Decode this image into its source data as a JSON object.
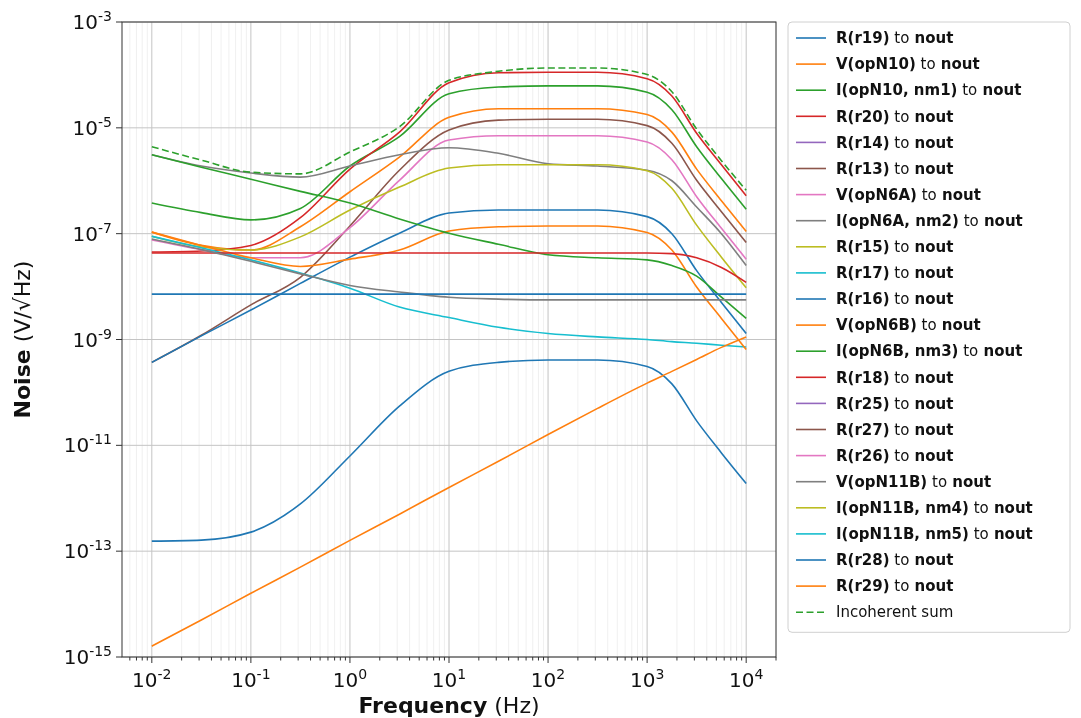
{
  "chart_data": {
    "type": "line",
    "xlabel": "Frequency (Hz)",
    "ylabel": "Noise (V/√Hz)",
    "log": "xy",
    "grid": true,
    "legend": "right",
    "xlim": [
      0.005,
      20000
    ],
    "ylim": [
      1e-15,
      0.001
    ],
    "xticks": [
      {
        "value": 0.006,
        "label": null
      },
      {
        "value": 0.007,
        "label": null
      },
      {
        "value": 0.008,
        "label": null
      },
      {
        "value": 0.009,
        "label": null
      },
      {
        "value": 0.01,
        "label": "10$^{-2}$"
      },
      {
        "value": 0.02,
        "label": null
      },
      {
        "value": 0.03,
        "label": null
      },
      {
        "value": 0.04,
        "label": null
      },
      {
        "value": 0.05,
        "label": null
      },
      {
        "value": 0.06,
        "label": null
      },
      {
        "value": 0.07,
        "label": null
      },
      {
        "value": 0.08,
        "label": null
      },
      {
        "value": 0.09,
        "label": null
      },
      {
        "value": 0.1,
        "label": "10$^{-1}$"
      },
      {
        "value": 0.2,
        "label": null
      },
      {
        "value": 0.3,
        "label": null
      },
      {
        "value": 0.4,
        "label": null
      },
      {
        "value": 0.5,
        "label": null
      },
      {
        "value": 0.6,
        "label": null
      },
      {
        "value": 0.7,
        "label": null
      },
      {
        "value": 0.8,
        "label": null
      },
      {
        "value": 0.9,
        "label": null
      },
      {
        "value": 1,
        "label": "10$^{0}$"
      },
      {
        "value": 2,
        "label": null
      },
      {
        "value": 3,
        "label": null
      },
      {
        "value": 4,
        "label": null
      },
      {
        "value": 5,
        "label": null
      },
      {
        "value": 6,
        "label": null
      },
      {
        "value": 7,
        "label": null
      },
      {
        "value": 8,
        "label": null
      },
      {
        "value": 9,
        "label": null
      },
      {
        "value": 10,
        "label": "10$^{1}$"
      },
      {
        "value": 20,
        "label": null
      },
      {
        "value": 30,
        "label": null
      },
      {
        "value": 40,
        "label": null
      },
      {
        "value": 50,
        "label": null
      },
      {
        "value": 60,
        "label": null
      },
      {
        "value": 70,
        "label": null
      },
      {
        "value": 80,
        "label": null
      },
      {
        "value": 90,
        "label": null
      },
      {
        "value": 100,
        "label": "10$^{2}$"
      },
      {
        "value": 200,
        "label": null
      },
      {
        "value": 300,
        "label": null
      },
      {
        "value": 400,
        "label": null
      },
      {
        "value": 500,
        "label": null
      },
      {
        "value": 600,
        "label": null
      },
      {
        "value": 700,
        "label": null
      },
      {
        "value": 800,
        "label": null
      },
      {
        "value": 900,
        "label": null
      },
      {
        "value": 1000,
        "label": "10$^{3}$"
      },
      {
        "value": 2000,
        "label": null
      },
      {
        "value": 3000,
        "label": null
      },
      {
        "value": 4000,
        "label": null
      },
      {
        "value": 5000,
        "label": null
      },
      {
        "value": 6000,
        "label": null
      },
      {
        "value": 7000,
        "label": null
      },
      {
        "value": 8000,
        "label": null
      },
      {
        "value": 9000,
        "label": null
      },
      {
        "value": 10000,
        "label": "10$^{4}$"
      },
      {
        "value": 20000,
        "label": null
      }
    ],
    "yticks": [
      {
        "value": 1e-15,
        "label": "10$^{-15}$"
      },
      {
        "value": 1e-13,
        "label": "10$^{-13}$"
      },
      {
        "value": 1e-11,
        "label": "10$^{-11}$"
      },
      {
        "value": 1e-09,
        "label": "10$^{-9}$"
      },
      {
        "value": 1e-07,
        "label": "10$^{-7}$"
      },
      {
        "value": 1e-05,
        "label": "10$^{-5}$"
      },
      {
        "value": 0.001,
        "label": "10$^{-3}$"
      }
    ],
    "x": [
      0.01,
      0.0316,
      0.1,
      0.316,
      1,
      3.16,
      10,
      31.6,
      100,
      316,
      1000,
      1778,
      3162,
      5623,
      10000
    ],
    "series": [
      {
        "name": "R(r19) to nout",
        "color": "#1f77b4",
        "values": [
          1.55e-13,
          1.62e-13,
          2.29e-13,
          7.8e-13,
          6.3e-12,
          5.5e-11,
          2.5e-10,
          3.7e-10,
          4.1e-10,
          4.1e-10,
          3.1e-10,
          1.45e-10,
          2.9e-11,
          7.2e-12,
          1.9e-12
        ]
      },
      {
        "name": "V(opN10) to nout",
        "color": "#ff7f0e",
        "values": [
          1.07e-07,
          6e-08,
          4.9e-08,
          1.35e-07,
          6.2e-07,
          2.8e-06,
          1.58e-05,
          2.3e-05,
          2.3e-05,
          2.3e-05,
          1.78e-05,
          8.3e-06,
          1.66e-06,
          4.2e-07,
          1.1e-07
        ]
      },
      {
        "name": "I(opN10, nm1) to nout",
        "color": "#2ca02c",
        "values": [
          3.8e-07,
          2.5e-07,
          1.82e-07,
          3e-07,
          1.9e-06,
          6.8e-06,
          4.4e-05,
          5.9e-05,
          6.2e-05,
          6.2e-05,
          4.7e-05,
          2.2e-05,
          4.4e-06,
          1.1e-06,
          2.9e-07
        ]
      },
      {
        "name": "R(r20) to nout",
        "color": "#d62728",
        "values": [
          4.5e-08,
          4.7e-08,
          6e-08,
          2e-07,
          1.66e-06,
          8.3e-06,
          7.1e-05,
          0.00011,
          0.000112,
          0.000112,
          8.5e-05,
          4e-05,
          7.9e-06,
          2e-06,
          5.2e-07
        ]
      },
      {
        "name": "R(r14) to nout",
        "color": "#9467bd",
        "values": [
          null,
          null,
          null,
          null,
          null,
          null,
          null,
          null,
          null,
          null,
          null,
          null,
          null,
          null,
          null
        ]
      },
      {
        "name": "R(r13) to nout",
        "color": "#8c564b",
        "values": [
          3.7e-10,
          1.2e-09,
          4.5e-09,
          1.5e-08,
          1.4e-07,
          1.58e-06,
          9.1e-06,
          1.4e-05,
          1.45e-05,
          1.45e-05,
          1.1e-05,
          5.1e-06,
          1.02e-06,
          2.6e-07,
          6.8e-08
        ]
      },
      {
        "name": "V(opN6A) to nout",
        "color": "#e377c2",
        "values": [
          7.6e-08,
          5e-08,
          3.5e-08,
          3.5e-08,
          1.3e-07,
          1.02e-06,
          5.9e-06,
          7.1e-06,
          7.1e-06,
          7.1e-06,
          5.4e-06,
          2.5e-06,
          5e-07,
          1.26e-07,
          3.3e-08
        ]
      },
      {
        "name": "I(opN6A, nm2) to nout",
        "color": "#7f7f7f",
        "values": [
          3.1e-06,
          1.9e-06,
          1.4e-06,
          1.17e-06,
          1.9e-06,
          3.1e-06,
          4.2e-06,
          3.3e-06,
          2.1e-06,
          1.9e-06,
          1.58e-06,
          1e-06,
          3.2e-07,
          1e-07,
          2.5e-08
        ]
      },
      {
        "name": "R(r15) to nout",
        "color": "#bcbd22",
        "values": [
          8.9e-08,
          5.6e-08,
          4.9e-08,
          8.7e-08,
          2.8e-07,
          7.6e-07,
          1.74e-06,
          2e-06,
          2e-06,
          2e-06,
          1.55e-06,
          7.2e-07,
          1.45e-07,
          3.6e-08,
          9.5e-09
        ]
      },
      {
        "name": "R(r17) to nout",
        "color": "#17becf",
        "values": [
          8.9e-08,
          5.4e-08,
          3.2e-08,
          1.8e-08,
          9.3e-09,
          4.1e-09,
          2.6e-09,
          1.7e-09,
          1.3e-09,
          1.12e-09,
          1e-09,
          9.1e-10,
          8.5e-10,
          7.8e-10,
          7.2e-10
        ]
      },
      {
        "name": "R(r16) to nout",
        "color": "#1f77b4",
        "values": [
          3.7e-10,
          1.17e-09,
          3.6e-09,
          1.15e-08,
          3.6e-08,
          1.02e-07,
          2.45e-07,
          2.8e-07,
          2.8e-07,
          2.8e-07,
          2.1e-07,
          1e-07,
          2e-08,
          5e-09,
          1.3e-09
        ]
      },
      {
        "name": "V(opN6B) to nout",
        "color": "#ff7f0e",
        "values": [
          1.07e-07,
          6e-08,
          3.5e-08,
          2.4e-08,
          3.3e-08,
          4.9e-08,
          1.12e-07,
          1.35e-07,
          1.4e-07,
          1.4e-07,
          1.05e-07,
          4.9e-08,
          9.8e-09,
          2.5e-09,
          6.5e-10
        ]
      },
      {
        "name": "I(opN6B, nm3) to nout",
        "color": "#2ca02c",
        "values": [
          3.1e-06,
          1.8e-06,
          1.07e-06,
          6.3e-07,
          3.8e-07,
          1.9e-07,
          1.02e-07,
          6.3e-08,
          4e-08,
          3.5e-08,
          3.2e-08,
          2.5e-08,
          1.58e-08,
          6.3e-09,
          2.5e-09
        ]
      },
      {
        "name": "R(r18) to nout",
        "color": "#d62728",
        "values": [
          4.3e-08,
          4.3e-08,
          4.3e-08,
          4.3e-08,
          4.3e-08,
          4.3e-08,
          4.3e-08,
          4.3e-08,
          4.3e-08,
          4.3e-08,
          4.3e-08,
          4.2e-08,
          3.5e-08,
          2.3e-08,
          1.2e-08
        ]
      },
      {
        "name": "R(r25) to nout",
        "color": "#9467bd",
        "values": [
          null,
          null,
          null,
          null,
          null,
          null,
          null,
          null,
          null,
          null,
          null,
          null,
          null,
          null,
          null
        ]
      },
      {
        "name": "R(r27) to nout",
        "color": "#8c564b",
        "values": [
          null,
          null,
          null,
          null,
          null,
          null,
          null,
          null,
          null,
          null,
          null,
          null,
          null,
          null,
          null
        ]
      },
      {
        "name": "R(r26) to nout",
        "color": "#e377c2",
        "values": [
          null,
          null,
          null,
          null,
          null,
          null,
          null,
          null,
          null,
          null,
          null,
          null,
          null,
          null,
          null
        ]
      },
      {
        "name": "V(opN11B) to nout",
        "color": "#7f7f7f",
        "values": [
          7.9e-08,
          5e-08,
          3e-08,
          1.74e-08,
          1.05e-08,
          7.9e-09,
          6.3e-09,
          5.8e-09,
          5.6e-09,
          5.6e-09,
          5.6e-09,
          5.6e-09,
          5.6e-09,
          5.6e-09,
          5.6e-09
        ]
      },
      {
        "name": "I(opN11B, nm4) to nout",
        "color": "#bcbd22",
        "values": [
          null,
          null,
          null,
          null,
          null,
          null,
          null,
          null,
          null,
          null,
          null,
          null,
          null,
          null,
          null
        ]
      },
      {
        "name": "I(opN11B, nm5) to nout",
        "color": "#17becf",
        "values": [
          null,
          null,
          null,
          null,
          null,
          null,
          null,
          null,
          null,
          null,
          null,
          null,
          null,
          null,
          null
        ]
      },
      {
        "name": "R(r28) to nout",
        "color": "#1f77b4",
        "values": [
          7.2e-09,
          7.2e-09,
          7.2e-09,
          7.2e-09,
          7.2e-09,
          7.2e-09,
          7.2e-09,
          7.2e-09,
          7.2e-09,
          7.2e-09,
          7.2e-09,
          7.2e-09,
          7.2e-09,
          7.2e-09,
          7.2e-09
        ]
      },
      {
        "name": "R(r29) to nout",
        "color": "#ff7f0e",
        "values": [
          1.6e-15,
          5e-15,
          1.6e-14,
          5e-14,
          1.6e-13,
          5e-13,
          1.6e-12,
          5e-12,
          1.6e-11,
          5e-11,
          1.5e-10,
          2.5e-10,
          4.2e-10,
          7.1e-10,
          1.12e-09
        ]
      },
      {
        "name": "Incoherent sum",
        "color": "#2ca02c",
        "line_style": "dashed",
        "values": [
          4.4e-06,
          2.45e-06,
          1.45e-06,
          1.35e-06,
          3.5e-06,
          1.05e-05,
          7.9e-05,
          0.000117,
          0.000135,
          0.000135,
          0.000102,
          4.8e-05,
          9.5e-06,
          2.4e-06,
          6.6e-07
        ]
      }
    ]
  }
}
